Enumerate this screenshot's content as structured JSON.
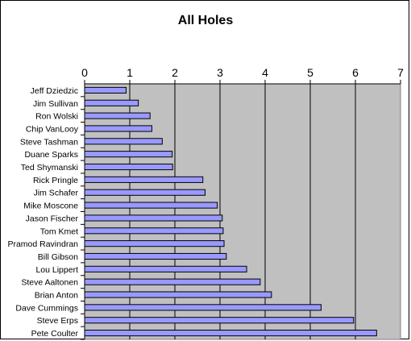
{
  "chart_data": {
    "type": "bar",
    "orientation": "horizontal",
    "title": "All Holes",
    "xlabel": "",
    "ylabel": "",
    "xlim": [
      0,
      7
    ],
    "x_ticks": [
      "0",
      "1",
      "2",
      "3",
      "4",
      "5",
      "6",
      "7"
    ],
    "x_axis_position": "top",
    "grid": true,
    "legend": "none",
    "categories": [
      "Jeff Dziedzic",
      "Jim Sullivan",
      "Ron Wolski",
      "Chip VanLooy",
      "Steve Tashman",
      "Duane Sparks",
      "Ted Shymanski",
      "Rick Pringle",
      "Jim Schafer",
      "Mike Moscone",
      "Jason Fischer",
      "Tom Kmet",
      "Pramod Ravindran",
      "Bill Gibson",
      "Lou Lippert",
      "Steve Aaltonen",
      "Brian Anton",
      "Dave Cummings",
      "Steve Erps",
      "Pete Coulter"
    ],
    "values": [
      0.92,
      1.19,
      1.45,
      1.49,
      1.72,
      1.94,
      1.95,
      2.62,
      2.67,
      2.94,
      3.05,
      3.07,
      3.09,
      3.14,
      3.59,
      3.89,
      4.14,
      5.24,
      5.96,
      6.47
    ],
    "colors": {
      "bar_fill": "#9999ff",
      "bar_stroke": "#000000",
      "plot_background": "#c0c0c0",
      "gridline": "#000000"
    }
  }
}
